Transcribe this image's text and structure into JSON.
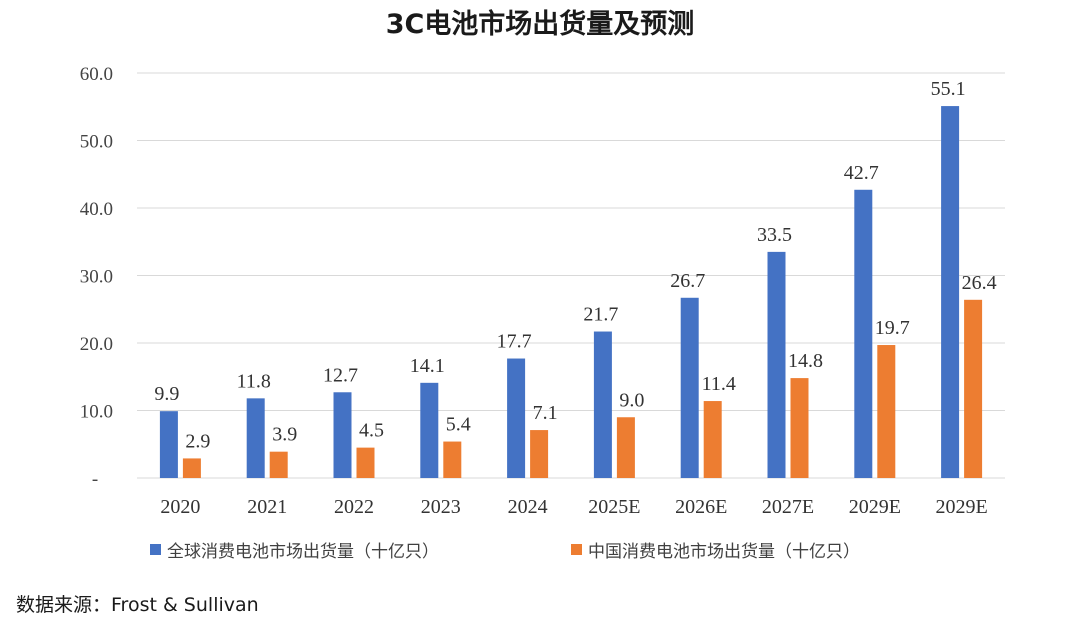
{
  "chart_data": {
    "type": "bar",
    "title": "3C电池市场出货量及预测",
    "categories": [
      "2020",
      "2021",
      "2022",
      "2023",
      "2024",
      "2025E",
      "2026E",
      "2027E",
      "2029E",
      "2029E"
    ],
    "series": [
      {
        "name": "全球消费电池市场出货量（十亿只）",
        "color": "#4472C4",
        "values": [
          9.9,
          11.8,
          12.7,
          14.1,
          17.7,
          21.7,
          26.7,
          33.5,
          42.7,
          55.1
        ]
      },
      {
        "name": "中国消费电池市场出货量（十亿只）",
        "color": "#ED7D31",
        "values": [
          2.9,
          3.9,
          4.5,
          5.4,
          7.1,
          9.0,
          11.4,
          14.8,
          19.7,
          26.4
        ]
      }
    ],
    "yticks": [
      "-",
      "10.0",
      "20.0",
      "30.0",
      "40.0",
      "50.0",
      "60.0"
    ],
    "ylim": [
      0,
      60
    ],
    "grid": true,
    "legend": "bottom"
  },
  "source": "数据来源：Frost & Sullivan"
}
